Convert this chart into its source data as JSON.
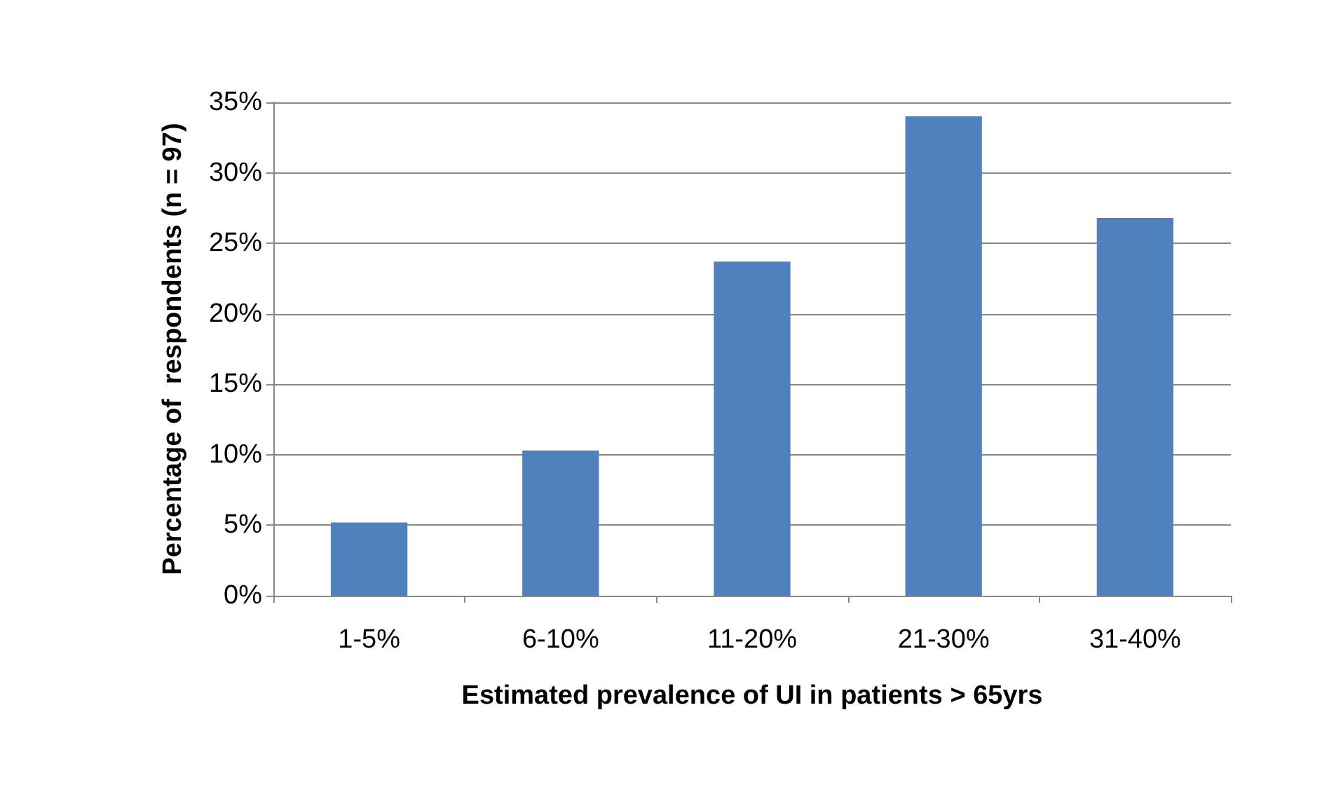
{
  "chart_data": {
    "type": "bar",
    "xlabel": "Estimated prevalence of UI in patients > 65yrs",
    "ylabel": "Percentage of  respondents (n = 97)",
    "categories": [
      "1-5%",
      "6-10%",
      "11-20%",
      "21-30%",
      "31-40%"
    ],
    "values": [
      5.2,
      10.3,
      23.7,
      34.0,
      26.8
    ],
    "color": "#4f81bd",
    "ylim": [
      0,
      35
    ],
    "yticks": [
      {
        "value": 0,
        "label": "0%"
      },
      {
        "value": 5,
        "label": "5%"
      },
      {
        "value": 10,
        "label": "10%"
      },
      {
        "value": 15,
        "label": "15%"
      },
      {
        "value": 20,
        "label": "20%"
      },
      {
        "value": 25,
        "label": "25%"
      },
      {
        "value": 30,
        "label": "30%"
      },
      {
        "value": 35,
        "label": "35%"
      }
    ],
    "grid": "y"
  }
}
